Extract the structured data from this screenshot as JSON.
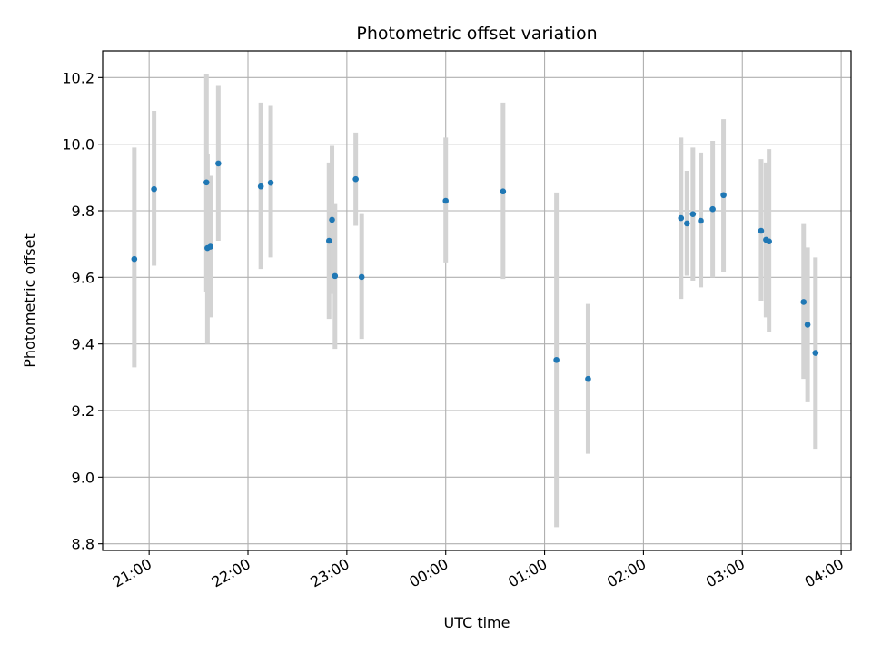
{
  "chart_data": {
    "type": "scatter",
    "title": "Photometric offset variation",
    "xlabel": "UTC time",
    "ylabel": "Photometric offset",
    "grid": true,
    "point_color": "#1f77b4",
    "errorbar_color": "#d3d3d3",
    "x_unit": "hours after 20:00 UTC",
    "xlim": [
      0.53,
      8.1
    ],
    "ylim": [
      8.78,
      10.28
    ],
    "x_ticks": [
      {
        "label": "21:00",
        "x": 1.0
      },
      {
        "label": "22:00",
        "x": 2.0
      },
      {
        "label": "23:00",
        "x": 3.0
      },
      {
        "label": "00:00",
        "x": 4.0
      },
      {
        "label": "01:00",
        "x": 5.0
      },
      {
        "label": "02:00",
        "x": 6.0
      },
      {
        "label": "03:00",
        "x": 7.0
      },
      {
        "label": "04:00",
        "x": 8.0
      }
    ],
    "y_ticks": [
      {
        "label": "8.8",
        "y": 8.8
      },
      {
        "label": "9.0",
        "y": 9.0
      },
      {
        "label": "9.2",
        "y": 9.2
      },
      {
        "label": "9.4",
        "y": 9.4
      },
      {
        "label": "9.6",
        "y": 9.6
      },
      {
        "label": "9.8",
        "y": 9.8
      },
      {
        "label": "10.0",
        "y": 10.0
      },
      {
        "label": "10.2",
        "y": 10.2
      }
    ],
    "points": [
      {
        "x": 0.85,
        "y": 9.655,
        "lo": 9.33,
        "hi": 9.99
      },
      {
        "x": 1.05,
        "y": 9.865,
        "lo": 9.635,
        "hi": 10.1
      },
      {
        "x": 1.58,
        "y": 9.885,
        "lo": 9.555,
        "hi": 10.21
      },
      {
        "x": 1.59,
        "y": 9.688,
        "lo": 9.4,
        "hi": 9.97
      },
      {
        "x": 1.62,
        "y": 9.692,
        "lo": 9.48,
        "hi": 9.905
      },
      {
        "x": 1.7,
        "y": 9.942,
        "lo": 9.71,
        "hi": 10.175
      },
      {
        "x": 2.13,
        "y": 9.873,
        "lo": 9.625,
        "hi": 10.125
      },
      {
        "x": 2.23,
        "y": 9.884,
        "lo": 9.66,
        "hi": 10.115
      },
      {
        "x": 2.82,
        "y": 9.71,
        "lo": 9.475,
        "hi": 9.945
      },
      {
        "x": 2.85,
        "y": 9.773,
        "lo": 9.55,
        "hi": 9.995
      },
      {
        "x": 2.88,
        "y": 9.604,
        "lo": 9.385,
        "hi": 9.82
      },
      {
        "x": 3.09,
        "y": 9.895,
        "lo": 9.755,
        "hi": 10.035
      },
      {
        "x": 3.15,
        "y": 9.601,
        "lo": 9.415,
        "hi": 9.79
      },
      {
        "x": 4.0,
        "y": 9.83,
        "lo": 9.645,
        "hi": 10.02
      },
      {
        "x": 4.58,
        "y": 9.858,
        "lo": 9.595,
        "hi": 10.125
      },
      {
        "x": 5.12,
        "y": 9.352,
        "lo": 8.85,
        "hi": 9.855
      },
      {
        "x": 5.44,
        "y": 9.295,
        "lo": 9.07,
        "hi": 9.52
      },
      {
        "x": 6.38,
        "y": 9.778,
        "lo": 9.535,
        "hi": 10.02
      },
      {
        "x": 6.44,
        "y": 9.762,
        "lo": 9.605,
        "hi": 9.92
      },
      {
        "x": 6.5,
        "y": 9.79,
        "lo": 9.59,
        "hi": 9.99
      },
      {
        "x": 6.58,
        "y": 9.77,
        "lo": 9.57,
        "hi": 9.975
      },
      {
        "x": 6.7,
        "y": 9.805,
        "lo": 9.6,
        "hi": 10.01
      },
      {
        "x": 6.81,
        "y": 9.847,
        "lo": 9.615,
        "hi": 10.075
      },
      {
        "x": 7.19,
        "y": 9.74,
        "lo": 9.53,
        "hi": 9.955
      },
      {
        "x": 7.24,
        "y": 9.713,
        "lo": 9.48,
        "hi": 9.945
      },
      {
        "x": 7.27,
        "y": 9.708,
        "lo": 9.435,
        "hi": 9.985
      },
      {
        "x": 7.62,
        "y": 9.526,
        "lo": 9.295,
        "hi": 9.76
      },
      {
        "x": 7.66,
        "y": 9.458,
        "lo": 9.225,
        "hi": 9.69
      },
      {
        "x": 7.74,
        "y": 9.373,
        "lo": 9.085,
        "hi": 9.66
      }
    ]
  }
}
